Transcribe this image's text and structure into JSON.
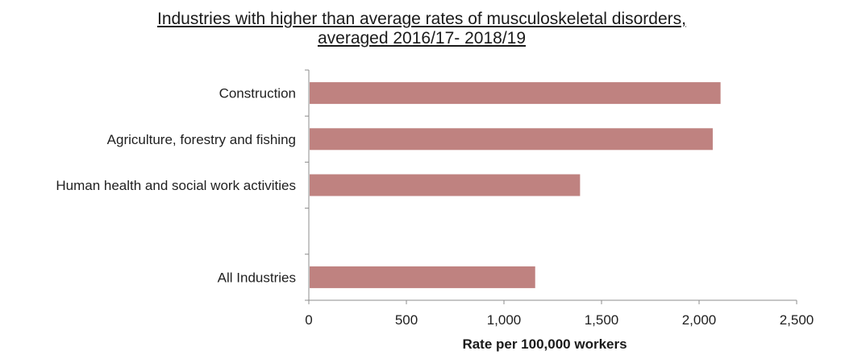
{
  "chart_data": {
    "type": "bar",
    "orientation": "horizontal",
    "title_lines": [
      "Industries with higher than average rates of musculoskeletal disorders,",
      "averaged 2016/17- 2018/19"
    ],
    "categories": [
      "Construction",
      "Agriculture, forestry and fishing",
      "Human health and social work activities",
      "",
      "All Industries"
    ],
    "values": [
      2110,
      2070,
      1390,
      null,
      1160
    ],
    "xlabel": "Rate per 100,000 workers",
    "xlim": [
      0,
      2500
    ],
    "x_ticks": [
      0,
      500,
      1000,
      1500,
      2000,
      2500
    ],
    "x_tick_labels": [
      "0",
      "500",
      "1,000",
      "1,500",
      "2,000",
      "2,500"
    ],
    "bar_color": "#bf8280",
    "axis_color": "#8c8c8c",
    "grid": false,
    "legend": "none"
  }
}
